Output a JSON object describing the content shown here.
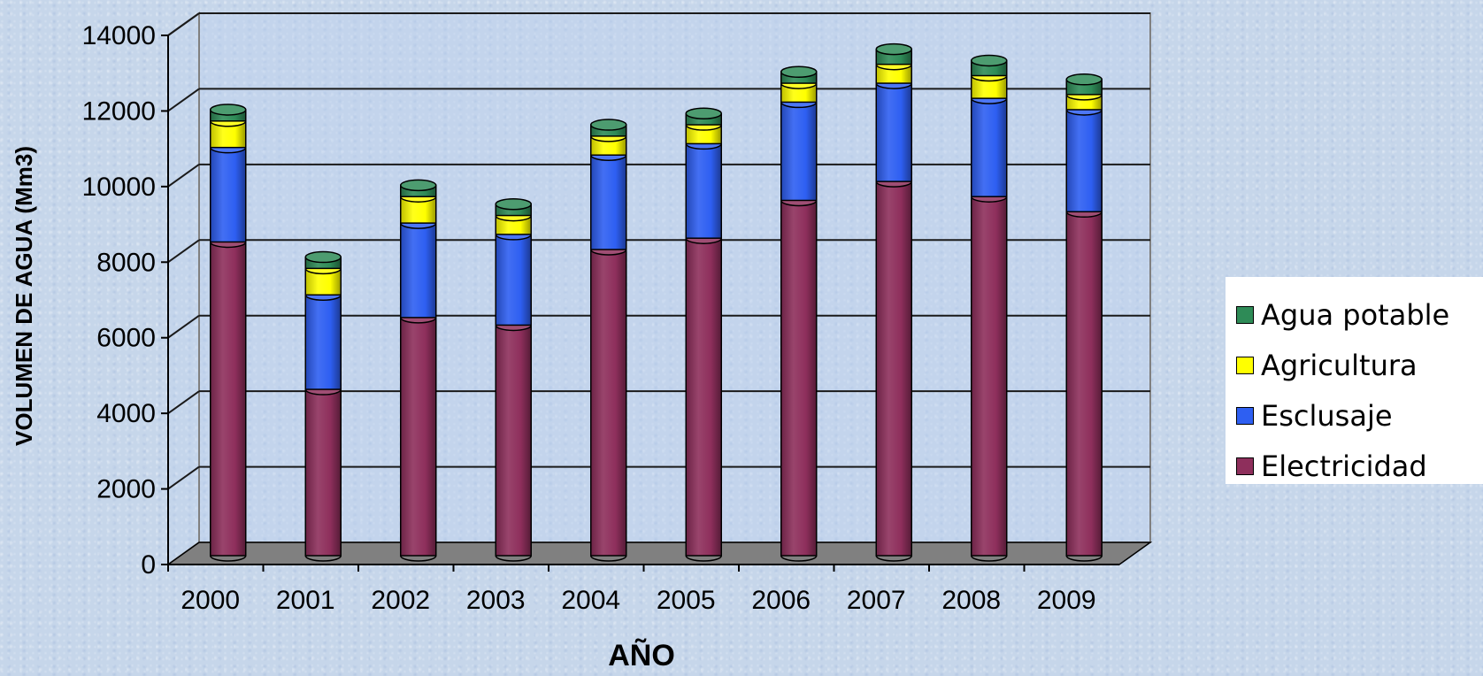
{
  "chart_data": {
    "type": "bar",
    "stacked": true,
    "three_d": true,
    "title": "",
    "xlabel": "AÑO",
    "ylabel": "VOLUMEN DE AGUA (Mm3)",
    "categories": [
      "2000",
      "2001",
      "2002",
      "2003",
      "2004",
      "2005",
      "2006",
      "2007",
      "2008",
      "2009"
    ],
    "ylim": [
      0,
      14000
    ],
    "yticks": [
      "0",
      "2000",
      "4000",
      "6000",
      "8000",
      "10000",
      "12000",
      "14000"
    ],
    "grid": true,
    "legend_position": "right",
    "series": [
      {
        "name": "Electricidad",
        "color": "#8e2f5c",
        "values": [
          8300,
          4400,
          6300,
          6100,
          8100,
          8400,
          9400,
          9900,
          9500,
          9100
        ]
      },
      {
        "name": "Esclusaje",
        "color": "#2e5ff2",
        "values": [
          2500,
          2500,
          2500,
          2400,
          2500,
          2500,
          2600,
          2600,
          2600,
          2700
        ]
      },
      {
        "name": "Agricultura",
        "color": "#ffff00",
        "values": [
          700,
          700,
          700,
          500,
          500,
          500,
          500,
          500,
          600,
          400
        ]
      },
      {
        "name": "Agua potable",
        "color": "#2e8b57",
        "values": [
          300,
          300,
          300,
          300,
          300,
          300,
          300,
          400,
          400,
          400
        ]
      }
    ]
  }
}
